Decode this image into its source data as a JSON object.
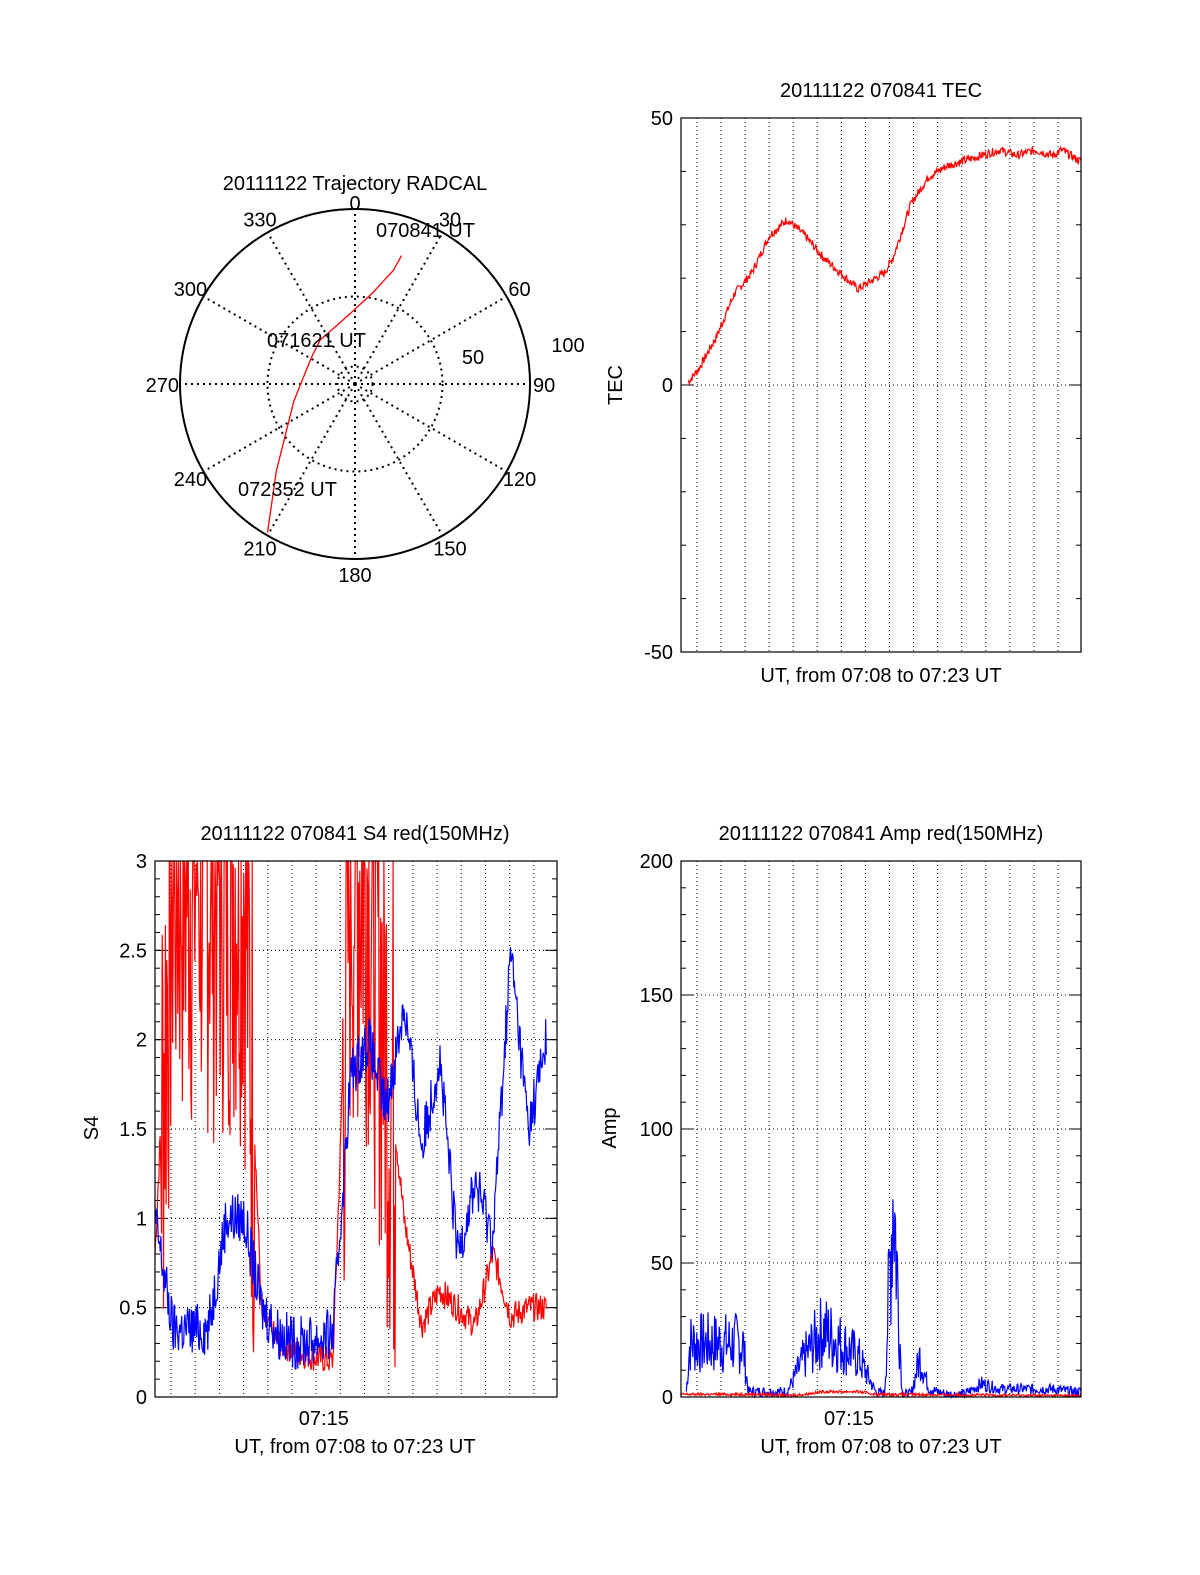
{
  "colors": {
    "red_series": "#ff0000",
    "blue_series": "#0000ff",
    "axis": "#000000",
    "grid": "#000000"
  },
  "chart_data": [
    {
      "type": "polar",
      "title": "20111122 Trajectory RADCAL",
      "azimuth_labels": [
        "0",
        "30",
        "60",
        "90",
        "120",
        "150",
        "180",
        "210",
        "240",
        "270",
        "300",
        "330"
      ],
      "radius_labels": [
        "50",
        "100"
      ],
      "rlim": [
        0,
        100
      ],
      "grid": true,
      "series": [
        {
          "color": "red",
          "points": [
            [
              26.6,
              73.4
            ],
            [
              22,
              65
            ],
            [
              10,
              52
            ],
            [
              -3,
              40
            ],
            [
              -20,
              25
            ],
            [
              -25,
              15
            ],
            [
              -35,
              -10
            ],
            [
              -45,
              -50
            ],
            [
              -50,
              -85
            ]
          ]
        }
      ],
      "annotations": [
        {
          "text": "070841 UT",
          "point": [
            26.6,
            73.4
          ]
        },
        {
          "text": "071621 UT",
          "point": [
            -25,
            15
          ]
        },
        {
          "text": "072352 UT",
          "point": [
            -50,
            -85
          ]
        }
      ]
    },
    {
      "type": "line",
      "title": "20111122 070841 TEC",
      "xlabel": "UT, from 07:08 to 07:23 UT",
      "ylabel": "TEC",
      "ylim": [
        -50,
        50
      ],
      "yticks": [
        "50",
        "0",
        "-50"
      ],
      "grid": true,
      "series": [
        {
          "color": "red",
          "x_minutes": [
            0.4,
            1,
            2,
            3,
            4,
            5,
            6,
            7,
            8,
            9,
            10,
            11,
            11.5,
            12,
            12.5,
            13,
            14,
            15,
            16,
            17,
            18,
            19,
            20,
            21,
            21.5,
            22,
            22.5,
            22.6
          ],
          "y": [
            0.5,
            3,
            9,
            17,
            21,
            28,
            31,
            28,
            24,
            21,
            18,
            20,
            21,
            24,
            29,
            34,
            39,
            41,
            42,
            43,
            44,
            43,
            44,
            43,
            44,
            43,
            42,
            42
          ]
        }
      ]
    },
    {
      "type": "line",
      "title": "20111122 070841 S4 red(150MHz)",
      "xlabel": "UT, from 07:08 to 07:23 UT",
      "ylabel": "S4",
      "xticks": [
        "07:15"
      ],
      "ylim": [
        0,
        3
      ],
      "yticks": [
        "0",
        "0.5",
        "1",
        "1.5",
        "2",
        "2.5",
        "3"
      ],
      "grid": true,
      "series": [
        {
          "color": "red",
          "x_minutes": [
            0,
            1,
            2,
            3,
            4,
            5,
            6,
            7,
            8,
            9,
            10,
            11,
            12,
            13,
            14,
            15,
            16,
            17,
            18,
            19,
            20,
            21,
            22
          ],
          "y": [
            0.8,
            3,
            3,
            3,
            3,
            3,
            0.45,
            0.3,
            0.25,
            0.22,
            0.2,
            3,
            3,
            2,
            1.0,
            0.4,
            0.6,
            0.5,
            0.4,
            0.8,
            0.45,
            0.5,
            0.5
          ]
        },
        {
          "color": "blue",
          "x_minutes": [
            0,
            1,
            2,
            3,
            4,
            5,
            6,
            7,
            8,
            9,
            10,
            11,
            12,
            13,
            14,
            15,
            16,
            17,
            18,
            19,
            20,
            21,
            22
          ],
          "y": [
            1.0,
            0.38,
            0.38,
            0.38,
            1.0,
            1.0,
            0.5,
            0.35,
            0.3,
            0.32,
            0.35,
            1.8,
            2.0,
            1.6,
            2.2,
            1.4,
            1.9,
            0.8,
            1.2,
            0.9,
            2.5,
            1.5,
            2.0
          ]
        }
      ]
    },
    {
      "type": "line",
      "title": "20111122 070841 Amp red(150MHz)",
      "xlabel": "UT, from 07:08 to 07:23 UT",
      "ylabel": "Amp",
      "xticks": [
        "07:15"
      ],
      "ylim": [
        0,
        200
      ],
      "yticks": [
        "0",
        "50",
        "100",
        "150",
        "200"
      ],
      "grid": true,
      "series": [
        {
          "color": "blue",
          "x_minutes": [
            0.3,
            0.5,
            3.5,
            3.8,
            5,
            6,
            7,
            8,
            9,
            10,
            11,
            11.5,
            12,
            12.5,
            13,
            13.5,
            14,
            15,
            16,
            17,
            18,
            19,
            20,
            21,
            22,
            22.6
          ],
          "y": [
            2,
            20,
            20,
            2,
            2,
            2,
            15,
            25,
            20,
            15,
            2,
            1,
            80,
            1,
            1,
            15,
            3,
            1,
            1,
            5,
            3,
            3,
            3,
            3,
            2,
            2
          ]
        },
        {
          "color": "red",
          "x_minutes": [
            0,
            5,
            6,
            7,
            8,
            9,
            10,
            11,
            22.6
          ],
          "y": [
            1,
            1,
            0.5,
            1,
            2,
            2,
            2,
            1,
            0.5
          ]
        }
      ]
    }
  ]
}
